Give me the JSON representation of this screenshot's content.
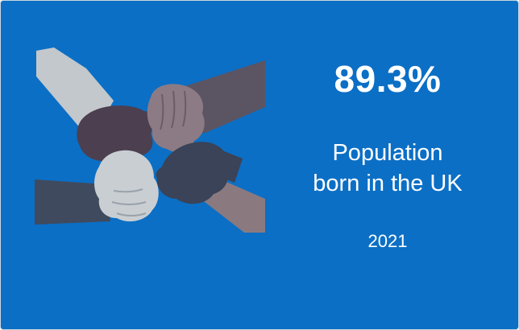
{
  "card": {
    "background_color": "#0b6fc5",
    "illustration_icon": "joined-hands-icon",
    "value": "89.3%",
    "label_line1": "Population",
    "label_line2": "born in the UK",
    "year": "2021"
  }
}
